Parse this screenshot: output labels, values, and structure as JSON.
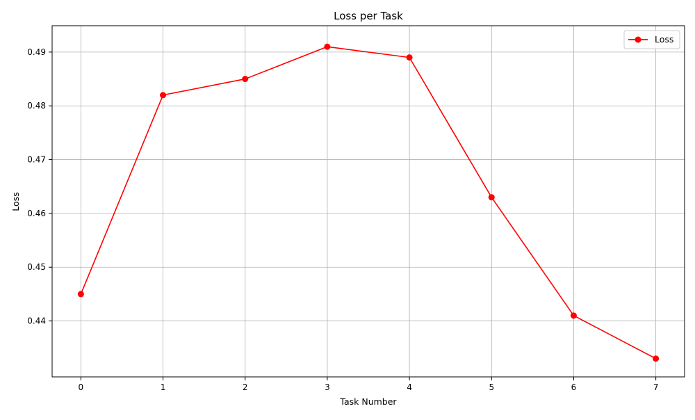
{
  "chart_data": {
    "type": "line",
    "title": "Loss per Task",
    "xlabel": "Task Number",
    "ylabel": "Loss",
    "x": [
      0,
      1,
      2,
      3,
      4,
      5,
      6,
      7
    ],
    "x_ticks": [
      "0",
      "1",
      "2",
      "3",
      "4",
      "5",
      "6",
      "7"
    ],
    "y_ticks": [
      "0.44",
      "0.45",
      "0.46",
      "0.47",
      "0.48",
      "0.49"
    ],
    "xlim": [
      -0.35,
      7.35
    ],
    "ylim": [
      0.4296,
      0.4949
    ],
    "grid": true,
    "legend_position": "top-right",
    "series": [
      {
        "name": "Loss",
        "color": "#ff0000",
        "marker": "circle",
        "values": [
          0.445,
          0.482,
          0.485,
          0.491,
          0.489,
          0.463,
          0.441,
          0.433
        ]
      }
    ]
  }
}
